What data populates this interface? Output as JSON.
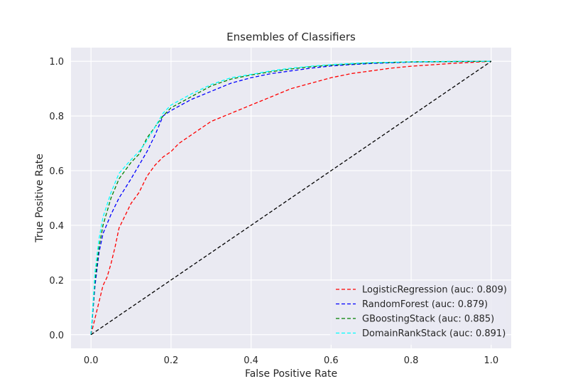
{
  "chart_data": {
    "type": "line",
    "title": "Ensembles of Classifiers",
    "xlabel": "False Positive Rate",
    "ylabel": "True Positive Rate",
    "xlim": [
      -0.05,
      1.05
    ],
    "ylim": [
      -0.05,
      1.05
    ],
    "xticks": [
      "0.0",
      "0.2",
      "0.4",
      "0.6",
      "0.8",
      "1.0"
    ],
    "yticks": [
      "0.0",
      "0.2",
      "0.4",
      "0.6",
      "0.8",
      "1.0"
    ],
    "grid": true,
    "background": "#eaeaf2",
    "legend_position": "lower-right",
    "series": [
      {
        "name": "LogisticRegression (auc: 0.809)",
        "color": "#ff0000",
        "dash": "dashed",
        "x": [
          0.0,
          0.01,
          0.02,
          0.03,
          0.04,
          0.05,
          0.06,
          0.07,
          0.08,
          0.1,
          0.12,
          0.14,
          0.16,
          0.18,
          0.2,
          0.22,
          0.25,
          0.28,
          0.3,
          0.35,
          0.4,
          0.45,
          0.5,
          0.55,
          0.6,
          0.65,
          0.7,
          0.75,
          0.8,
          0.9,
          1.0
        ],
        "y": [
          0.0,
          0.06,
          0.12,
          0.18,
          0.21,
          0.26,
          0.32,
          0.39,
          0.42,
          0.48,
          0.52,
          0.58,
          0.62,
          0.65,
          0.67,
          0.7,
          0.73,
          0.76,
          0.78,
          0.81,
          0.84,
          0.87,
          0.9,
          0.92,
          0.94,
          0.955,
          0.965,
          0.975,
          0.982,
          0.992,
          1.0
        ]
      },
      {
        "name": "RandomForest (auc: 0.879)",
        "color": "#0000ff",
        "dash": "dashed",
        "x": [
          0.0,
          0.01,
          0.02,
          0.03,
          0.05,
          0.07,
          0.1,
          0.12,
          0.14,
          0.16,
          0.18,
          0.2,
          0.25,
          0.3,
          0.35,
          0.4,
          0.45,
          0.5,
          0.55,
          0.6,
          0.65,
          0.7,
          0.8,
          0.9,
          1.0
        ],
        "y": [
          0.0,
          0.18,
          0.3,
          0.37,
          0.44,
          0.5,
          0.57,
          0.62,
          0.67,
          0.73,
          0.8,
          0.82,
          0.86,
          0.89,
          0.92,
          0.94,
          0.955,
          0.965,
          0.975,
          0.983,
          0.988,
          0.992,
          0.997,
          0.999,
          1.0
        ]
      },
      {
        "name": "GBoostingStack (auc: 0.885)",
        "color": "#008000",
        "dash": "dashed",
        "x": [
          0.0,
          0.01,
          0.02,
          0.03,
          0.05,
          0.07,
          0.1,
          0.12,
          0.14,
          0.16,
          0.18,
          0.2,
          0.25,
          0.3,
          0.35,
          0.4,
          0.45,
          0.5,
          0.55,
          0.6,
          0.65,
          0.7,
          0.8,
          0.9,
          1.0
        ],
        "y": [
          0.0,
          0.2,
          0.32,
          0.4,
          0.5,
          0.57,
          0.63,
          0.66,
          0.72,
          0.76,
          0.8,
          0.83,
          0.87,
          0.91,
          0.935,
          0.95,
          0.962,
          0.972,
          0.98,
          0.986,
          0.99,
          0.994,
          0.998,
          0.999,
          1.0
        ]
      },
      {
        "name": "DomainRankStack (auc: 0.891)",
        "color": "#00ffff",
        "dash": "dashed",
        "x": [
          0.0,
          0.01,
          0.02,
          0.03,
          0.05,
          0.07,
          0.1,
          0.12,
          0.14,
          0.16,
          0.18,
          0.2,
          0.25,
          0.3,
          0.35,
          0.4,
          0.45,
          0.5,
          0.55,
          0.6,
          0.65,
          0.7,
          0.8,
          0.9,
          1.0
        ],
        "y": [
          0.0,
          0.23,
          0.35,
          0.43,
          0.52,
          0.59,
          0.64,
          0.67,
          0.71,
          0.76,
          0.81,
          0.84,
          0.88,
          0.915,
          0.94,
          0.952,
          0.965,
          0.975,
          0.982,
          0.988,
          0.992,
          0.995,
          0.998,
          1.0,
          1.0
        ]
      },
      {
        "name": "",
        "color": "#000000",
        "dash": "dashed",
        "x": [
          0.0,
          1.0
        ],
        "y": [
          0.0,
          1.0
        ]
      }
    ]
  }
}
